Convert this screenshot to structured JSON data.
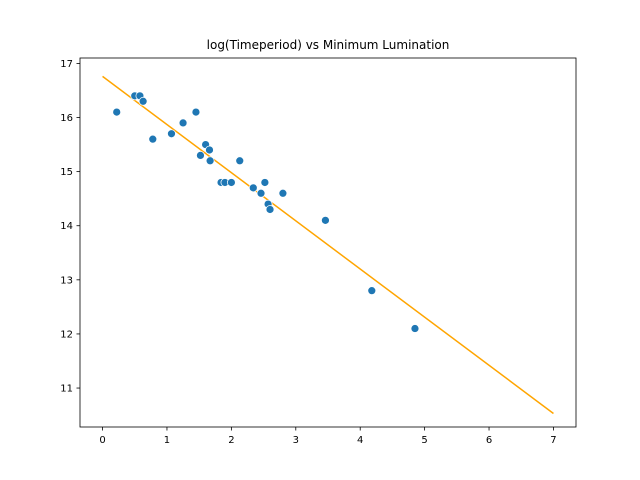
{
  "chart_data": {
    "type": "scatter",
    "title": "log(Timeperiod) vs Minimum Lumination",
    "xlabel": "",
    "ylabel": "",
    "xlim": [
      -0.35,
      7.35
    ],
    "ylim": [
      10.28,
      17.1
    ],
    "xticks": [
      0,
      1,
      2,
      3,
      4,
      5,
      6,
      7
    ],
    "yticks": [
      11,
      12,
      13,
      14,
      15,
      16,
      17
    ],
    "grid": false,
    "points": {
      "color": "#1f77b4",
      "x": [
        0.22,
        0.5,
        0.58,
        0.63,
        0.78,
        1.07,
        1.25,
        1.45,
        1.52,
        1.6,
        1.66,
        1.67,
        1.84,
        1.9,
        2.0,
        2.13,
        2.34,
        2.46,
        2.52,
        2.57,
        2.6,
        2.8,
        3.46,
        4.18,
        4.85
      ],
      "y": [
        16.1,
        16.4,
        16.4,
        16.3,
        15.6,
        15.7,
        15.9,
        16.1,
        15.3,
        15.5,
        15.4,
        15.2,
        14.8,
        14.8,
        14.8,
        15.2,
        14.7,
        14.6,
        14.8,
        14.4,
        14.3,
        14.6,
        14.1,
        12.8,
        12.1
      ]
    },
    "fit_line": {
      "color": "#ffa500",
      "x": [
        0,
        7
      ],
      "y": [
        16.76,
        10.53
      ]
    }
  }
}
